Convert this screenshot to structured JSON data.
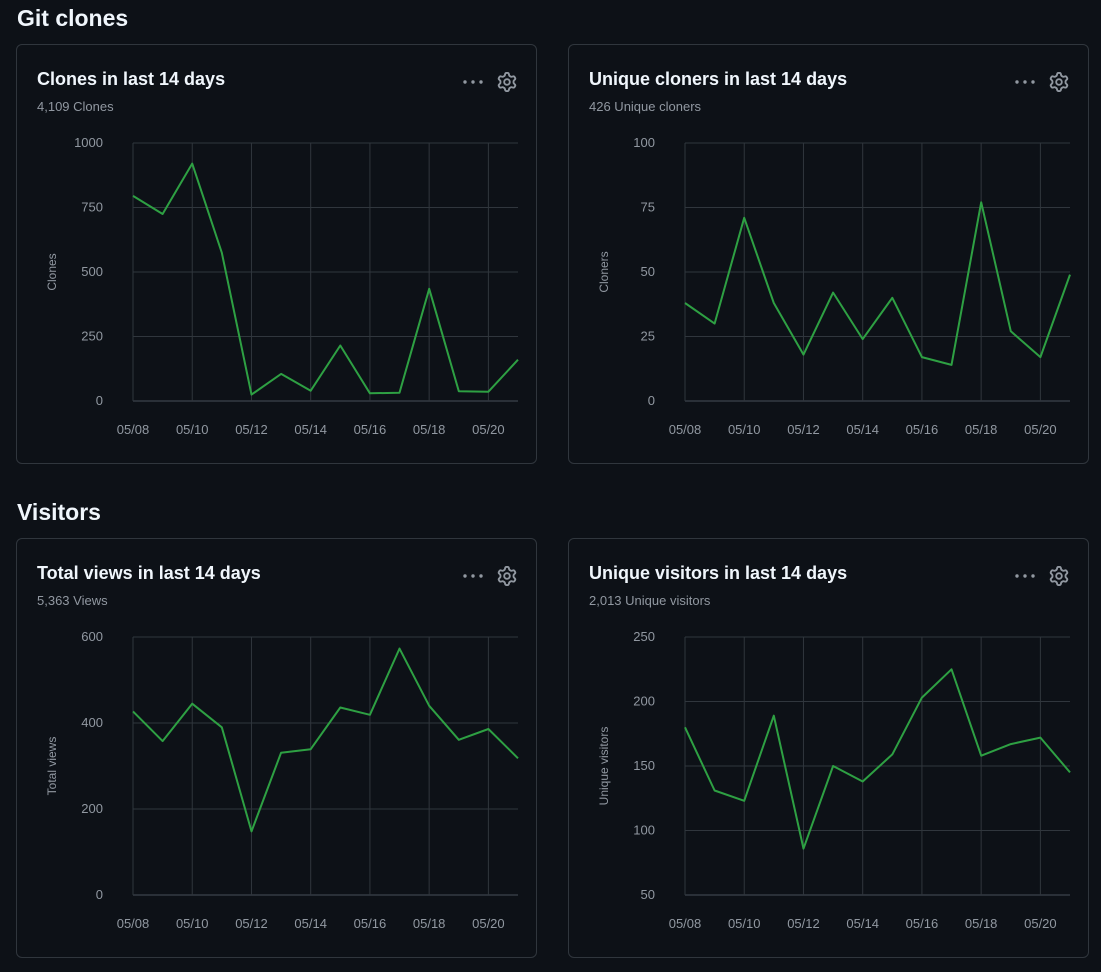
{
  "sections": [
    {
      "title": "Git clones",
      "cards": [
        {
          "title": "Clones in last 14 days",
          "subtitle": "4,109 Clones",
          "more_icon": "kebab-horizontal-icon",
          "settings_icon": "gear-icon",
          "chart_data": {
            "type": "line",
            "title": "Clones in last 14 days",
            "ylabel": "Clones",
            "xlabel": "",
            "ylim": [
              0,
              1000
            ],
            "yticks": [
              "0",
              "250",
              "500",
              "750",
              "1000"
            ],
            "x": [
              "05/08",
              "05/09",
              "05/10",
              "05/11",
              "05/12",
              "05/13",
              "05/14",
              "05/15",
              "05/16",
              "05/17",
              "05/18",
              "05/19",
              "05/20",
              "05/21"
            ],
            "xtick_labels": [
              "05/08",
              "05/10",
              "05/12",
              "05/14",
              "05/16",
              "05/18",
              "05/20"
            ],
            "values": [
              795,
              725,
              920,
              575,
              25,
              105,
              40,
              215,
              30,
              32,
              435,
              38,
              36,
              160
            ],
            "line_color": "#2ea043",
            "grid": true
          }
        },
        {
          "title": "Unique cloners in last 14 days",
          "subtitle": "426 Unique cloners",
          "more_icon": "kebab-horizontal-icon",
          "settings_icon": "gear-icon",
          "chart_data": {
            "type": "line",
            "title": "Unique cloners in last 14 days",
            "ylabel": "Cloners",
            "xlabel": "",
            "ylim": [
              0,
              100
            ],
            "yticks": [
              "0",
              "25",
              "50",
              "75",
              "100"
            ],
            "x": [
              "05/08",
              "05/09",
              "05/10",
              "05/11",
              "05/12",
              "05/13",
              "05/14",
              "05/15",
              "05/16",
              "05/17",
              "05/18",
              "05/19",
              "05/20",
              "05/21"
            ],
            "xtick_labels": [
              "05/08",
              "05/10",
              "05/12",
              "05/14",
              "05/16",
              "05/18",
              "05/20"
            ],
            "values": [
              38,
              30,
              71,
              38,
              18,
              42,
              24,
              40,
              17,
              14,
              77,
              27,
              17,
              49
            ],
            "line_color": "#2ea043",
            "grid": true
          }
        }
      ]
    },
    {
      "title": "Visitors",
      "cards": [
        {
          "title": "Total views in last 14 days",
          "subtitle": "5,363 Views",
          "more_icon": "kebab-horizontal-icon",
          "settings_icon": "gear-icon",
          "chart_data": {
            "type": "line",
            "title": "Total views in last 14 days",
            "ylabel": "Total views",
            "xlabel": "",
            "ylim": [
              0,
              600
            ],
            "yticks": [
              "0",
              "200",
              "400",
              "600"
            ],
            "x": [
              "05/08",
              "05/09",
              "05/10",
              "05/11",
              "05/12",
              "05/13",
              "05/14",
              "05/15",
              "05/16",
              "05/17",
              "05/18",
              "05/19",
              "05/20",
              "05/21"
            ],
            "xtick_labels": [
              "05/08",
              "05/10",
              "05/12",
              "05/14",
              "05/16",
              "05/18",
              "05/20"
            ],
            "values": [
              427,
              358,
              445,
              390,
              148,
              331,
              339,
              436,
              419,
              573,
              440,
              361,
              386,
              318
            ],
            "line_color": "#2ea043",
            "grid": true
          }
        },
        {
          "title": "Unique visitors in last 14 days",
          "subtitle": "2,013 Unique visitors",
          "more_icon": "kebab-horizontal-icon",
          "settings_icon": "gear-icon",
          "chart_data": {
            "type": "line",
            "title": "Unique visitors in last 14 days",
            "ylabel": "Unique visitors",
            "xlabel": "",
            "ylim": [
              50,
              250
            ],
            "yticks": [
              "50",
              "100",
              "150",
              "200",
              "250"
            ],
            "x": [
              "05/08",
              "05/09",
              "05/10",
              "05/11",
              "05/12",
              "05/13",
              "05/14",
              "05/15",
              "05/16",
              "05/17",
              "05/18",
              "05/19",
              "05/20",
              "05/21"
            ],
            "xtick_labels": [
              "05/08",
              "05/10",
              "05/12",
              "05/14",
              "05/16",
              "05/18",
              "05/20"
            ],
            "values": [
              180,
              131,
              123,
              189,
              86,
              150,
              138,
              159,
              203,
              225,
              158,
              167,
              172,
              145
            ],
            "line_color": "#2ea043",
            "grid": true
          }
        }
      ]
    }
  ]
}
